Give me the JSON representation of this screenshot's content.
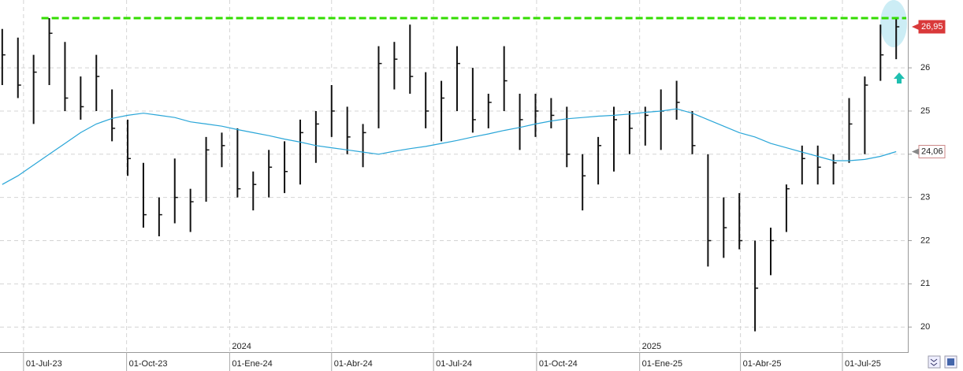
{
  "chart_data": {
    "type": "ohlc",
    "x": [
      "2023-06-12",
      "2023-06-26",
      "2023-07-10",
      "2023-07-24",
      "2023-08-07",
      "2023-08-21",
      "2023-09-04",
      "2023-09-18",
      "2023-10-02",
      "2023-10-16",
      "2023-10-30",
      "2023-11-13",
      "2023-11-27",
      "2023-12-11",
      "2023-12-25",
      "2024-01-08",
      "2024-01-22",
      "2024-02-05",
      "2024-02-19",
      "2024-03-04",
      "2024-03-18",
      "2024-04-01",
      "2024-04-15",
      "2024-04-29",
      "2024-05-13",
      "2024-05-27",
      "2024-06-10",
      "2024-06-24",
      "2024-07-08",
      "2024-07-22",
      "2024-08-05",
      "2024-08-19",
      "2024-09-02",
      "2024-09-16",
      "2024-09-30",
      "2024-10-14",
      "2024-10-28",
      "2024-11-11",
      "2024-11-25",
      "2024-12-09",
      "2024-12-23",
      "2025-01-06",
      "2025-01-20",
      "2025-02-03",
      "2025-02-17",
      "2025-03-03",
      "2025-03-17",
      "2025-03-31",
      "2025-04-14",
      "2025-04-28",
      "2025-05-12",
      "2025-05-26",
      "2025-06-09",
      "2025-06-23",
      "2025-07-07",
      "2025-07-21",
      "2025-08-04",
      "2025-08-18"
    ],
    "high": [
      26.9,
      26.7,
      26.3,
      27.15,
      26.6,
      25.8,
      26.3,
      25.5,
      24.8,
      23.8,
      23.0,
      23.9,
      23.2,
      24.4,
      24.5,
      24.6,
      23.6,
      24.1,
      24.3,
      24.8,
      25.0,
      25.6,
      25.1,
      24.7,
      26.5,
      26.6,
      27.0,
      25.9,
      25.7,
      26.5,
      26.0,
      25.4,
      26.5,
      25.4,
      25.4,
      25.3,
      25.1,
      24.0,
      24.4,
      25.1,
      25.0,
      25.1,
      25.5,
      25.7,
      25.0,
      24.0,
      23.0,
      23.1,
      22.0,
      22.3,
      23.3,
      24.2,
      24.2,
      24.0,
      25.3,
      25.8,
      27.0,
      27.15
    ],
    "low": [
      25.6,
      25.3,
      24.7,
      25.6,
      25.0,
      24.8,
      25.0,
      24.3,
      23.5,
      22.3,
      22.1,
      22.4,
      22.2,
      22.9,
      23.7,
      23.0,
      22.7,
      23.0,
      23.1,
      23.3,
      23.8,
      24.4,
      24.0,
      23.7,
      24.6,
      25.5,
      25.4,
      24.6,
      24.3,
      25.0,
      24.5,
      24.6,
      25.0,
      24.1,
      24.4,
      24.6,
      23.7,
      22.7,
      23.3,
      23.6,
      24.0,
      24.2,
      24.1,
      24.8,
      24.0,
      21.4,
      21.6,
      21.8,
      19.9,
      21.2,
      22.2,
      23.3,
      23.3,
      23.3,
      23.8,
      24.0,
      25.7,
      26.2
    ],
    "close": [
      26.3,
      25.6,
      25.9,
      26.8,
      25.3,
      25.1,
      25.8,
      24.6,
      23.9,
      22.6,
      22.6,
      23.0,
      22.9,
      24.1,
      24.2,
      23.2,
      23.3,
      23.7,
      23.6,
      24.5,
      24.7,
      25.0,
      24.4,
      24.5,
      26.1,
      26.2,
      25.8,
      25.0,
      25.3,
      26.1,
      24.8,
      25.2,
      25.7,
      24.8,
      25.0,
      24.9,
      24.0,
      23.5,
      24.2,
      24.8,
      24.6,
      24.9,
      25.0,
      25.2,
      24.2,
      22.0,
      22.3,
      22.0,
      20.9,
      22.0,
      23.2,
      23.9,
      23.7,
      23.8,
      24.7,
      25.6,
      26.3,
      26.95
    ],
    "bar_color": "#111111",
    "moving_average": {
      "color": "#2aa6d8",
      "values": [
        23.3,
        23.5,
        23.75,
        24.0,
        24.25,
        24.5,
        24.7,
        24.83,
        24.9,
        24.95,
        24.9,
        24.85,
        24.75,
        24.7,
        24.65,
        24.57,
        24.5,
        24.43,
        24.35,
        24.28,
        24.2,
        24.15,
        24.1,
        24.05,
        24.0,
        24.07,
        24.13,
        24.18,
        24.25,
        24.32,
        24.4,
        24.47,
        24.55,
        24.62,
        24.7,
        24.77,
        24.82,
        24.85,
        24.88,
        24.9,
        24.93,
        24.97,
        25.0,
        25.05,
        24.95,
        24.8,
        24.65,
        24.5,
        24.4,
        24.25,
        24.15,
        24.05,
        23.95,
        23.85,
        23.85,
        23.88,
        23.95,
        24.06
      ]
    },
    "resistance": {
      "value": 27.15,
      "start": "2023-07-17",
      "color": "#33dd00"
    },
    "price_labels": [
      {
        "value": 26.95,
        "label": "26,95",
        "color": "#d9393a"
      },
      {
        "value": 24.06,
        "label": "24,06",
        "color": "#ffffff"
      }
    ],
    "xlim": [
      "2023-06-10",
      "2025-08-27"
    ],
    "xticks": [
      {
        "value": "2023-07-01",
        "label": "01-Jul-23"
      },
      {
        "value": "2023-10-01",
        "label": "01-Oct-23"
      },
      {
        "value": "2024-01-01",
        "label": "01-Ene-24"
      },
      {
        "value": "2024-04-01",
        "label": "01-Abr-24"
      },
      {
        "value": "2024-07-01",
        "label": "01-Jul-24"
      },
      {
        "value": "2024-10-01",
        "label": "01-Oct-24"
      },
      {
        "value": "2025-01-01",
        "label": "01-Ene-25"
      },
      {
        "value": "2025-04-01",
        "label": "01-Abr-25"
      },
      {
        "value": "2025-07-01",
        "label": "01-Jul-25"
      }
    ],
    "year_markers": [
      {
        "value": "2024-01-01",
        "label": "2024"
      },
      {
        "value": "2025-01-01",
        "label": "2025"
      }
    ],
    "ylim": [
      19.42,
      27.57
    ],
    "yticks": [
      20,
      21,
      22,
      23,
      24,
      25,
      26
    ],
    "grid": true
  }
}
